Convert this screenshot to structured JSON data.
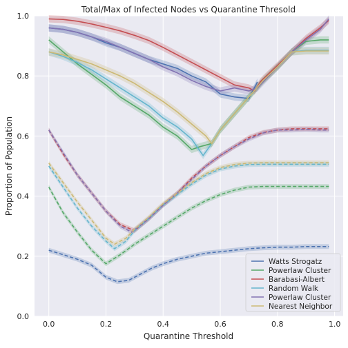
{
  "chart_data": {
    "type": "line",
    "title": "Total/Max of Infected Nodes vs Quarantine Thresold",
    "xlabel": "Quarantine Threshold",
    "ylabel": "Proportion of Population",
    "xlim": [
      -0.05,
      1.03
    ],
    "ylim": [
      0.0,
      1.0
    ],
    "xticks": [
      "0.0",
      "0.2",
      "0.4",
      "0.6",
      "0.8",
      "1.0"
    ],
    "xtick_values": [
      0.0,
      0.2,
      0.4,
      0.6,
      0.8,
      1.0
    ],
    "yticks": [
      "0.0",
      "0.2",
      "0.4",
      "0.6",
      "0.8",
      "1.0"
    ],
    "ytick_values": [
      0.0,
      0.2,
      0.4,
      0.6,
      0.8,
      1.0
    ],
    "grid": true,
    "background": "#eaeaf2",
    "legend_position": "lower-right",
    "series": [
      {
        "name": "Watts Strogatz",
        "color": "#4c72b0",
        "total_style": "solid",
        "max_style": "dashed",
        "total_points": [
          [
            0.0,
            0.96
          ],
          [
            0.05,
            0.955
          ],
          [
            0.1,
            0.945
          ],
          [
            0.15,
            0.93
          ],
          [
            0.2,
            0.91
          ],
          [
            0.25,
            0.895
          ],
          [
            0.3,
            0.875
          ],
          [
            0.35,
            0.855
          ],
          [
            0.4,
            0.84
          ],
          [
            0.45,
            0.825
          ],
          [
            0.5,
            0.8
          ],
          [
            0.55,
            0.78
          ],
          [
            0.6,
            0.74
          ],
          [
            0.65,
            0.73
          ],
          [
            0.7,
            0.725
          ],
          [
            0.73,
            0.78
          ]
        ],
        "max_points": [
          [
            0.0,
            0.22
          ],
          [
            0.05,
            0.205
          ],
          [
            0.1,
            0.19
          ],
          [
            0.15,
            0.17
          ],
          [
            0.2,
            0.13
          ],
          [
            0.24,
            0.115
          ],
          [
            0.28,
            0.12
          ],
          [
            0.32,
            0.14
          ],
          [
            0.36,
            0.16
          ],
          [
            0.4,
            0.175
          ],
          [
            0.45,
            0.19
          ],
          [
            0.5,
            0.2
          ],
          [
            0.55,
            0.21
          ],
          [
            0.6,
            0.215
          ],
          [
            0.65,
            0.22
          ],
          [
            0.7,
            0.225
          ],
          [
            0.75,
            0.228
          ],
          [
            0.8,
            0.23
          ],
          [
            0.85,
            0.23
          ],
          [
            0.9,
            0.232
          ],
          [
            0.95,
            0.232
          ],
          [
            0.98,
            0.232
          ]
        ]
      },
      {
        "name": "Powerlaw Cluster",
        "color": "#55a868",
        "total_style": "solid",
        "max_style": "dashed",
        "total_points": [
          [
            0.0,
            0.92
          ],
          [
            0.05,
            0.88
          ],
          [
            0.1,
            0.84
          ],
          [
            0.15,
            0.805
          ],
          [
            0.2,
            0.77
          ],
          [
            0.25,
            0.73
          ],
          [
            0.3,
            0.7
          ],
          [
            0.35,
            0.67
          ],
          [
            0.4,
            0.63
          ],
          [
            0.45,
            0.6
          ],
          [
            0.5,
            0.555
          ],
          [
            0.53,
            0.565
          ],
          [
            0.57,
            0.575
          ],
          [
            0.6,
            0.62
          ],
          [
            0.65,
            0.675
          ],
          [
            0.7,
            0.73
          ],
          [
            0.75,
            0.785
          ],
          [
            0.8,
            0.83
          ],
          [
            0.85,
            0.88
          ],
          [
            0.9,
            0.915
          ],
          [
            0.95,
            0.92
          ],
          [
            0.98,
            0.92
          ]
        ],
        "max_points": [
          [
            0.0,
            0.43
          ],
          [
            0.05,
            0.345
          ],
          [
            0.1,
            0.28
          ],
          [
            0.15,
            0.22
          ],
          [
            0.2,
            0.175
          ],
          [
            0.25,
            0.205
          ],
          [
            0.3,
            0.24
          ],
          [
            0.35,
            0.27
          ],
          [
            0.4,
            0.3
          ],
          [
            0.45,
            0.33
          ],
          [
            0.5,
            0.36
          ],
          [
            0.55,
            0.385
          ],
          [
            0.6,
            0.405
          ],
          [
            0.65,
            0.42
          ],
          [
            0.7,
            0.43
          ],
          [
            0.75,
            0.432
          ],
          [
            0.8,
            0.432
          ],
          [
            0.85,
            0.432
          ],
          [
            0.9,
            0.432
          ],
          [
            0.95,
            0.432
          ],
          [
            0.98,
            0.432
          ]
        ]
      },
      {
        "name": "Barabasi-Albert",
        "color": "#c44e52",
        "total_style": "solid",
        "max_style": "dashed",
        "total_points": [
          [
            0.0,
            0.99
          ],
          [
            0.05,
            0.988
          ],
          [
            0.1,
            0.982
          ],
          [
            0.15,
            0.973
          ],
          [
            0.2,
            0.962
          ],
          [
            0.25,
            0.95
          ],
          [
            0.3,
            0.935
          ],
          [
            0.35,
            0.918
          ],
          [
            0.4,
            0.895
          ],
          [
            0.45,
            0.87
          ],
          [
            0.5,
            0.845
          ],
          [
            0.55,
            0.82
          ],
          [
            0.6,
            0.795
          ],
          [
            0.65,
            0.77
          ],
          [
            0.7,
            0.76
          ],
          [
            0.72,
            0.75
          ],
          [
            0.74,
            0.78
          ],
          [
            0.75,
            0.79
          ],
          [
            0.8,
            0.835
          ],
          [
            0.85,
            0.88
          ],
          [
            0.9,
            0.925
          ],
          [
            0.95,
            0.96
          ],
          [
            0.98,
            0.985
          ]
        ],
        "max_points": [
          [
            0.0,
            0.62
          ],
          [
            0.05,
            0.54
          ],
          [
            0.1,
            0.47
          ],
          [
            0.15,
            0.41
          ],
          [
            0.2,
            0.35
          ],
          [
            0.25,
            0.305
          ],
          [
            0.3,
            0.285
          ],
          [
            0.35,
            0.325
          ],
          [
            0.4,
            0.37
          ],
          [
            0.45,
            0.41
          ],
          [
            0.5,
            0.46
          ],
          [
            0.55,
            0.5
          ],
          [
            0.6,
            0.535
          ],
          [
            0.65,
            0.565
          ],
          [
            0.7,
            0.595
          ],
          [
            0.75,
            0.612
          ],
          [
            0.8,
            0.62
          ],
          [
            0.85,
            0.624
          ],
          [
            0.9,
            0.624
          ],
          [
            0.95,
            0.624
          ],
          [
            0.98,
            0.624
          ]
        ]
      },
      {
        "name": "Random Walk",
        "color": "#64b5cd",
        "total_style": "solid",
        "max_style": "dashed",
        "total_points": [
          [
            0.0,
            0.88
          ],
          [
            0.05,
            0.865
          ],
          [
            0.1,
            0.845
          ],
          [
            0.15,
            0.82
          ],
          [
            0.2,
            0.79
          ],
          [
            0.25,
            0.76
          ],
          [
            0.3,
            0.73
          ],
          [
            0.35,
            0.7
          ],
          [
            0.4,
            0.66
          ],
          [
            0.45,
            0.63
          ],
          [
            0.5,
            0.59
          ],
          [
            0.54,
            0.535
          ],
          [
            0.57,
            0.575
          ],
          [
            0.6,
            0.62
          ],
          [
            0.65,
            0.675
          ],
          [
            0.7,
            0.73
          ],
          [
            0.75,
            0.785
          ],
          [
            0.8,
            0.83
          ],
          [
            0.85,
            0.88
          ],
          [
            0.9,
            0.885
          ],
          [
            0.95,
            0.885
          ],
          [
            0.98,
            0.885
          ]
        ],
        "max_points": [
          [
            0.0,
            0.5
          ],
          [
            0.05,
            0.43
          ],
          [
            0.1,
            0.36
          ],
          [
            0.15,
            0.3
          ],
          [
            0.2,
            0.25
          ],
          [
            0.23,
            0.225
          ],
          [
            0.27,
            0.25
          ],
          [
            0.3,
            0.285
          ],
          [
            0.35,
            0.325
          ],
          [
            0.4,
            0.37
          ],
          [
            0.45,
            0.405
          ],
          [
            0.5,
            0.44
          ],
          [
            0.55,
            0.47
          ],
          [
            0.6,
            0.49
          ],
          [
            0.65,
            0.5
          ],
          [
            0.7,
            0.505
          ],
          [
            0.75,
            0.506
          ],
          [
            0.8,
            0.506
          ],
          [
            0.85,
            0.506
          ],
          [
            0.9,
            0.506
          ],
          [
            0.95,
            0.506
          ],
          [
            0.98,
            0.506
          ]
        ]
      },
      {
        "name": "Powerlaw Cluster",
        "color": "#8172b2",
        "total_style": "solid",
        "max_style": "dashed",
        "total_points": [
          [
            0.0,
            0.96
          ],
          [
            0.05,
            0.955
          ],
          [
            0.1,
            0.945
          ],
          [
            0.15,
            0.93
          ],
          [
            0.2,
            0.915
          ],
          [
            0.25,
            0.895
          ],
          [
            0.3,
            0.875
          ],
          [
            0.35,
            0.855
          ],
          [
            0.4,
            0.83
          ],
          [
            0.45,
            0.81
          ],
          [
            0.5,
            0.785
          ],
          [
            0.55,
            0.765
          ],
          [
            0.6,
            0.75
          ],
          [
            0.65,
            0.76
          ],
          [
            0.7,
            0.75
          ],
          [
            0.73,
            0.76
          ],
          [
            0.8,
            0.83
          ],
          [
            0.85,
            0.88
          ],
          [
            0.9,
            0.92
          ],
          [
            0.95,
            0.955
          ],
          [
            0.98,
            0.99
          ]
        ],
        "max_points": [
          [
            0.0,
            0.62
          ],
          [
            0.05,
            0.545
          ],
          [
            0.1,
            0.47
          ],
          [
            0.15,
            0.41
          ],
          [
            0.2,
            0.35
          ],
          [
            0.25,
            0.3
          ],
          [
            0.29,
            0.28
          ],
          [
            0.35,
            0.325
          ],
          [
            0.4,
            0.37
          ],
          [
            0.45,
            0.41
          ],
          [
            0.5,
            0.455
          ],
          [
            0.55,
            0.5
          ],
          [
            0.6,
            0.535
          ],
          [
            0.65,
            0.565
          ],
          [
            0.7,
            0.59
          ],
          [
            0.75,
            0.61
          ],
          [
            0.8,
            0.62
          ],
          [
            0.85,
            0.62
          ],
          [
            0.9,
            0.622
          ],
          [
            0.95,
            0.62
          ],
          [
            0.98,
            0.62
          ]
        ]
      },
      {
        "name": "Nearest Neighbor",
        "color": "#ccb974",
        "total_style": "solid",
        "max_style": "dashed",
        "total_points": [
          [
            0.0,
            0.88
          ],
          [
            0.05,
            0.87
          ],
          [
            0.1,
            0.855
          ],
          [
            0.15,
            0.84
          ],
          [
            0.2,
            0.82
          ],
          [
            0.25,
            0.8
          ],
          [
            0.3,
            0.775
          ],
          [
            0.35,
            0.745
          ],
          [
            0.4,
            0.715
          ],
          [
            0.45,
            0.68
          ],
          [
            0.5,
            0.64
          ],
          [
            0.55,
            0.6
          ],
          [
            0.57,
            0.575
          ],
          [
            0.6,
            0.62
          ],
          [
            0.65,
            0.675
          ],
          [
            0.7,
            0.73
          ],
          [
            0.75,
            0.785
          ],
          [
            0.8,
            0.83
          ],
          [
            0.85,
            0.88
          ],
          [
            0.9,
            0.883
          ],
          [
            0.95,
            0.883
          ],
          [
            0.98,
            0.883
          ]
        ],
        "max_points": [
          [
            0.0,
            0.51
          ],
          [
            0.05,
            0.445
          ],
          [
            0.1,
            0.38
          ],
          [
            0.15,
            0.32
          ],
          [
            0.2,
            0.26
          ],
          [
            0.23,
            0.24
          ],
          [
            0.27,
            0.26
          ],
          [
            0.3,
            0.29
          ],
          [
            0.35,
            0.33
          ],
          [
            0.4,
            0.375
          ],
          [
            0.45,
            0.41
          ],
          [
            0.5,
            0.445
          ],
          [
            0.55,
            0.475
          ],
          [
            0.6,
            0.495
          ],
          [
            0.65,
            0.505
          ],
          [
            0.7,
            0.51
          ],
          [
            0.75,
            0.511
          ],
          [
            0.8,
            0.511
          ],
          [
            0.85,
            0.511
          ],
          [
            0.9,
            0.511
          ],
          [
            0.95,
            0.511
          ],
          [
            0.98,
            0.511
          ]
        ]
      }
    ]
  }
}
